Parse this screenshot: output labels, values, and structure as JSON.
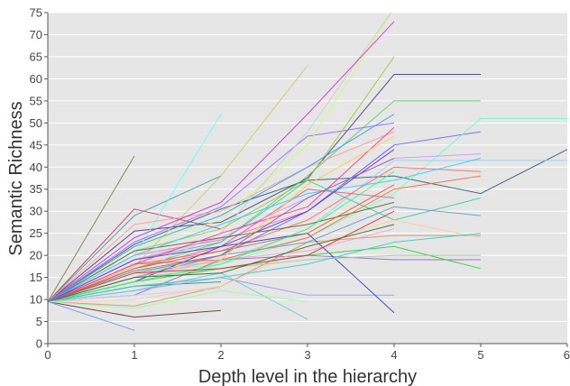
{
  "chart_data": {
    "type": "line",
    "title": "",
    "xlabel": "Depth level in the hierarchy",
    "ylabel": "Semantic Richness",
    "xlim": [
      0,
      6
    ],
    "ylim": [
      0,
      75
    ],
    "x_ticks": [
      "0",
      "1",
      "2",
      "3",
      "4",
      "5",
      "6"
    ],
    "y_ticks": [
      "0",
      "5",
      "10",
      "15",
      "20",
      "25",
      "30",
      "35",
      "40",
      "45",
      "50",
      "55",
      "60",
      "65",
      "70",
      "75"
    ],
    "grid": true,
    "legend": "none",
    "background_color": "#e6e6e6",
    "series": [
      {
        "color": "#808040",
        "points": [
          [
            0,
            9.5
          ],
          [
            1,
            42.5
          ]
        ]
      },
      {
        "color": "#cc3366",
        "points": [
          [
            0,
            9.5
          ],
          [
            1,
            30.5
          ],
          [
            2,
            26
          ]
        ]
      },
      {
        "color": "#40a0a0",
        "points": [
          [
            0,
            9.5
          ],
          [
            1,
            29
          ],
          [
            2,
            38
          ]
        ]
      },
      {
        "color": "#404080",
        "points": [
          [
            0,
            9.5
          ],
          [
            1,
            25.5
          ],
          [
            2,
            27.5
          ],
          [
            3,
            37.5
          ],
          [
            4,
            61
          ],
          [
            5,
            61
          ]
        ]
      },
      {
        "color": "#2f5f6f",
        "points": [
          [
            0,
            9.5
          ],
          [
            1,
            22.5
          ],
          [
            2,
            30.5
          ],
          [
            3,
            37
          ],
          [
            4,
            38
          ],
          [
            5,
            34
          ],
          [
            6,
            44
          ]
        ]
      },
      {
        "color": "#ff66cc",
        "points": [
          [
            0,
            9.5
          ],
          [
            1,
            20
          ],
          [
            2,
            23.5
          ],
          [
            3,
            30
          ],
          [
            4,
            45
          ]
        ]
      },
      {
        "color": "#66cc66",
        "points": [
          [
            0,
            9.5
          ],
          [
            1,
            17
          ],
          [
            2,
            23
          ],
          [
            3,
            38
          ],
          [
            4,
            55
          ],
          [
            5,
            55
          ]
        ]
      },
      {
        "color": "#99ccff",
        "points": [
          [
            0,
            9.5
          ],
          [
            1,
            16.5
          ],
          [
            2,
            18.5
          ],
          [
            3,
            26
          ],
          [
            4,
            41.5
          ],
          [
            5,
            41.5
          ],
          [
            6,
            41.5
          ]
        ]
      },
      {
        "color": "#6666ff",
        "points": [
          [
            0,
            9.5
          ],
          [
            1,
            15
          ],
          [
            2,
            20
          ],
          [
            3,
            30
          ],
          [
            4,
            45
          ],
          [
            5,
            48
          ]
        ]
      },
      {
        "color": "#66ffcc",
        "points": [
          [
            0,
            9.5
          ],
          [
            1,
            16
          ],
          [
            2,
            18
          ],
          [
            3,
            24
          ],
          [
            4,
            34
          ],
          [
            5,
            51
          ],
          [
            6,
            51
          ]
        ]
      },
      {
        "color": "#9966cc",
        "points": [
          [
            0,
            9.5
          ],
          [
            1,
            11
          ],
          [
            2,
            19
          ],
          [
            3,
            20
          ],
          [
            4,
            19
          ],
          [
            5,
            19
          ]
        ]
      },
      {
        "color": "#cc9966",
        "points": [
          [
            0,
            9.5
          ],
          [
            1,
            8.5
          ],
          [
            2,
            13
          ],
          [
            3,
            23
          ],
          [
            4,
            24.5
          ],
          [
            5,
            24.5
          ]
        ]
      },
      {
        "color": "#663333",
        "points": [
          [
            0,
            9.5
          ],
          [
            1,
            6
          ],
          [
            2,
            7.5
          ]
        ]
      },
      {
        "color": "#6699ff",
        "points": [
          [
            0,
            9.5
          ],
          [
            1,
            3
          ]
        ]
      },
      {
        "color": "#ccccff",
        "points": [
          [
            0,
            9.5
          ],
          [
            1,
            11
          ],
          [
            2,
            12.5
          ]
        ]
      },
      {
        "color": "#339966",
        "points": [
          [
            0,
            9.5
          ],
          [
            1,
            13
          ],
          [
            2,
            14
          ]
        ]
      },
      {
        "color": "#cccc66",
        "points": [
          [
            0,
            9.5
          ],
          [
            1,
            17.5
          ],
          [
            2,
            38
          ],
          [
            3,
            63
          ]
        ]
      },
      {
        "color": "#66ffff",
        "points": [
          [
            0,
            9.5
          ],
          [
            1,
            20
          ],
          [
            2,
            52
          ]
        ]
      },
      {
        "color": "#9966ff",
        "points": [
          [
            0,
            9.5
          ],
          [
            1,
            23
          ],
          [
            2,
            31
          ],
          [
            3,
            47
          ],
          [
            4,
            50
          ]
        ]
      },
      {
        "color": "#ff9999",
        "points": [
          [
            0,
            9.5
          ],
          [
            1,
            27
          ],
          [
            2,
            30
          ],
          [
            3,
            40
          ],
          [
            4,
            48
          ]
        ]
      },
      {
        "color": "#33cc99",
        "points": [
          [
            0,
            9.5
          ],
          [
            1,
            19
          ],
          [
            2,
            23
          ],
          [
            3,
            37
          ],
          [
            4,
            28
          ],
          [
            5,
            33
          ]
        ]
      },
      {
        "color": "#ff6666",
        "points": [
          [
            0,
            9.5
          ],
          [
            1,
            18
          ],
          [
            2,
            21
          ],
          [
            3,
            28
          ],
          [
            4,
            40
          ],
          [
            5,
            39
          ]
        ]
      },
      {
        "color": "#ccff66",
        "points": [
          [
            0,
            9.5
          ],
          [
            1,
            22
          ],
          [
            2,
            28
          ],
          [
            3,
            45
          ],
          [
            4,
            76
          ]
        ]
      },
      {
        "color": "#cccccc",
        "points": [
          [
            0,
            9.5
          ],
          [
            1,
            16
          ],
          [
            2,
            25
          ],
          [
            3,
            48
          ],
          [
            4,
            76
          ]
        ]
      },
      {
        "color": "#cc33cc",
        "points": [
          [
            0,
            9.5
          ],
          [
            1,
            24
          ],
          [
            2,
            32
          ],
          [
            3,
            52
          ],
          [
            4,
            73
          ]
        ]
      },
      {
        "color": "#99cc33",
        "points": [
          [
            0,
            9.5
          ],
          [
            1,
            21
          ],
          [
            2,
            26
          ],
          [
            3,
            37
          ],
          [
            4,
            65
          ]
        ]
      },
      {
        "color": "#cc6699",
        "points": [
          [
            0,
            9.5
          ],
          [
            1,
            17
          ],
          [
            2,
            22
          ],
          [
            3,
            35
          ],
          [
            4,
            33
          ]
        ]
      },
      {
        "color": "#9999ff",
        "points": [
          [
            0,
            9.5
          ],
          [
            1,
            12
          ],
          [
            2,
            15
          ],
          [
            3,
            11
          ],
          [
            4,
            11
          ]
        ]
      },
      {
        "color": "#3333cc",
        "points": [
          [
            0,
            9.5
          ],
          [
            1,
            14
          ],
          [
            2,
            22
          ],
          [
            3,
            25
          ],
          [
            4,
            7
          ]
        ]
      },
      {
        "color": "#33cc33",
        "points": [
          [
            0,
            9.5
          ],
          [
            1,
            14
          ],
          [
            2,
            17
          ],
          [
            3,
            20
          ],
          [
            4,
            22
          ],
          [
            5,
            17
          ]
        ]
      },
      {
        "color": "#66cccc",
        "points": [
          [
            0,
            9.5
          ],
          [
            1,
            12
          ],
          [
            2,
            16
          ],
          [
            3,
            5.5
          ]
        ]
      },
      {
        "color": "#99ff99",
        "points": [
          [
            0,
            9.5
          ],
          [
            1,
            8
          ],
          [
            2,
            12
          ],
          [
            3,
            9.5
          ]
        ]
      },
      {
        "color": "#ffcc99",
        "points": [
          [
            0,
            9.5
          ],
          [
            1,
            10
          ],
          [
            2,
            13
          ],
          [
            3,
            22
          ],
          [
            4,
            28
          ],
          [
            5,
            24
          ]
        ]
      },
      {
        "color": "#ff99cc",
        "points": [
          [
            0,
            9.5
          ],
          [
            1,
            15
          ],
          [
            2,
            19
          ],
          [
            3,
            21
          ],
          [
            4,
            26
          ]
        ]
      },
      {
        "color": "#6699cc",
        "points": [
          [
            0,
            9.5
          ],
          [
            1,
            16
          ],
          [
            2,
            20
          ],
          [
            3,
            23
          ],
          [
            4,
            31
          ],
          [
            5,
            29
          ]
        ]
      },
      {
        "color": "#cc99ff",
        "points": [
          [
            0,
            9.5
          ],
          [
            1,
            19
          ],
          [
            2,
            24
          ],
          [
            3,
            33
          ],
          [
            4,
            42
          ],
          [
            5,
            43
          ]
        ]
      },
      {
        "color": "#666633",
        "points": [
          [
            0,
            9.5
          ],
          [
            1,
            21
          ],
          [
            2,
            24
          ],
          [
            3,
            27
          ],
          [
            4,
            32
          ]
        ]
      },
      {
        "color": "#ff6633",
        "points": [
          [
            0,
            9.5
          ],
          [
            1,
            18
          ],
          [
            2,
            19
          ],
          [
            3,
            24
          ],
          [
            4,
            35
          ],
          [
            5,
            38
          ]
        ]
      },
      {
        "color": "#33ccff",
        "points": [
          [
            0,
            9.5
          ],
          [
            1,
            20
          ],
          [
            2,
            27
          ],
          [
            3,
            34
          ],
          [
            4,
            37
          ],
          [
            5,
            42
          ]
        ]
      },
      {
        "color": "#99cc99",
        "points": [
          [
            0,
            9.5
          ],
          [
            1,
            15
          ],
          [
            2,
            17
          ],
          [
            3,
            19
          ],
          [
            4,
            20
          ],
          [
            5,
            20
          ]
        ]
      },
      {
        "color": "#cc6633",
        "points": [
          [
            0,
            9.5
          ],
          [
            1,
            17
          ],
          [
            2,
            21
          ],
          [
            3,
            25
          ],
          [
            4,
            36
          ]
        ]
      },
      {
        "color": "#6633cc",
        "points": [
          [
            0,
            9.5
          ],
          [
            1,
            19
          ],
          [
            2,
            22
          ],
          [
            3,
            30
          ],
          [
            4,
            44
          ]
        ]
      },
      {
        "color": "#33ff66",
        "points": [
          [
            0,
            9.5
          ],
          [
            1,
            14
          ],
          [
            2,
            18
          ],
          [
            3,
            26
          ],
          [
            4,
            39
          ]
        ]
      },
      {
        "color": "#ff3399",
        "points": [
          [
            0,
            9.5
          ],
          [
            1,
            18
          ],
          [
            2,
            25
          ],
          [
            3,
            31
          ],
          [
            4,
            49
          ]
        ]
      },
      {
        "color": "#3399ff",
        "points": [
          [
            0,
            9.5
          ],
          [
            1,
            22
          ],
          [
            2,
            29
          ],
          [
            3,
            40
          ],
          [
            4,
            52
          ]
        ]
      },
      {
        "color": "#ffcc33",
        "points": [
          [
            0,
            9.5
          ],
          [
            1,
            16
          ],
          [
            2,
            19
          ],
          [
            3,
            36
          ],
          [
            4,
            47
          ]
        ]
      },
      {
        "color": "#336633",
        "points": [
          [
            0,
            9.5
          ],
          [
            1,
            15
          ],
          [
            2,
            16
          ],
          [
            3,
            22
          ],
          [
            4,
            27
          ]
        ]
      },
      {
        "color": "#cc3333",
        "points": [
          [
            0,
            9.5
          ],
          [
            1,
            16
          ],
          [
            2,
            17
          ],
          [
            3,
            20
          ],
          [
            4,
            30
          ]
        ]
      },
      {
        "color": "#33cccc",
        "points": [
          [
            0,
            9.5
          ],
          [
            1,
            13
          ],
          [
            2,
            15
          ],
          [
            3,
            18
          ],
          [
            4,
            23
          ],
          [
            5,
            25
          ]
        ]
      },
      {
        "color": "#996699",
        "points": [
          [
            0,
            9.5
          ],
          [
            1,
            16.5
          ],
          [
            2,
            20
          ],
          [
            3,
            33
          ],
          [
            4,
            42
          ]
        ]
      }
    ]
  }
}
